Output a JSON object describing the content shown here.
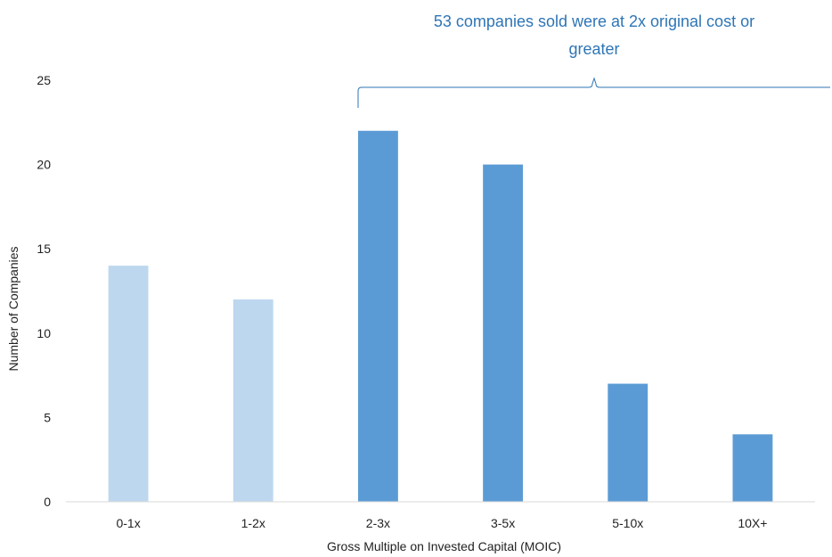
{
  "chart_data": {
    "type": "bar",
    "title": "",
    "xlabel": "Gross Multiple on Invested Capital (MOIC)",
    "ylabel": "Number of Companies",
    "categories": [
      "0-1x",
      "1-2x",
      "2-3x",
      "3-5x",
      "5-10x",
      "10X+"
    ],
    "values": [
      14,
      12,
      22,
      20,
      7,
      4
    ],
    "ylim": [
      0,
      25
    ],
    "yticks": [
      "0",
      "5",
      "10",
      "15",
      "20",
      "25"
    ],
    "grid": false,
    "legend": "none",
    "colors": {
      "below_2x": "#bdd7ee",
      "at_or_above_2x": "#5b9bd5",
      "annotation": "#2e75b6"
    },
    "annotation": {
      "line1": "53 companies sold were at 2x original cost or",
      "line2": "greater",
      "spans_from_category": "2-3x"
    }
  }
}
